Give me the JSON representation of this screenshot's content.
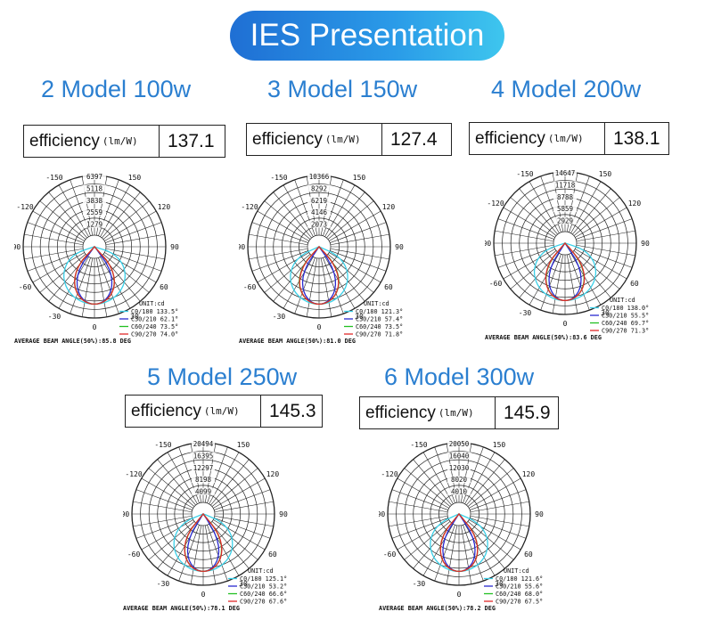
{
  "banner": {
    "title": "IES Presentation"
  },
  "efficiency_word": "efficiency",
  "efficiency_unit": "(lm/W)",
  "chart_data": [
    {
      "type": "polar",
      "model_title": "2 Model 100w",
      "efficiency": "137.1",
      "angle_labels": [
        "-150",
        "150",
        "-120",
        "120",
        "-90",
        "90",
        "-60",
        "60",
        "-30",
        "30",
        "0"
      ],
      "radial_ticks": [
        "6397",
        "5118",
        "3838",
        "2559",
        "1279"
      ],
      "unit_label": "UNIT:cd",
      "legend": [
        {
          "name": "C0/180",
          "value": "133.5°",
          "color": "#3ad0e8"
        },
        {
          "name": "C30/210",
          "value": "62.1°",
          "color": "#2a2ad0"
        },
        {
          "name": "C60/240",
          "value": "73.5°",
          "color": "#22c022"
        },
        {
          "name": "C90/270",
          "value": "74.0°",
          "color": "#e02a2a"
        }
      ],
      "beam_angle_label": "AVERAGE BEAM ANGLE(50%):85.8 DEG"
    },
    {
      "type": "polar",
      "model_title": "3 Model 150w",
      "efficiency": "127.4",
      "angle_labels": [
        "-150",
        "150",
        "-120",
        "120",
        "-90",
        "90",
        "-60",
        "60",
        "-30",
        "30",
        "0"
      ],
      "radial_ticks": [
        "10366",
        "8292",
        "6219",
        "4146",
        "2073"
      ],
      "unit_label": "UNIT:cd",
      "legend": [
        {
          "name": "C0/180",
          "value": "121.3°",
          "color": "#3ad0e8"
        },
        {
          "name": "C30/210",
          "value": "57.4°",
          "color": "#2a2ad0"
        },
        {
          "name": "C60/240",
          "value": "73.5°",
          "color": "#22c022"
        },
        {
          "name": "C90/270",
          "value": "71.8°",
          "color": "#e02a2a"
        }
      ],
      "beam_angle_label": "AVERAGE BEAM ANGLE(50%):81.0 DEG"
    },
    {
      "type": "polar",
      "model_title": "4 Model 200w",
      "efficiency": "138.1",
      "angle_labels": [
        "-150",
        "150",
        "-120",
        "120",
        "-90",
        "90",
        "-60",
        "60",
        "-30",
        "30",
        "0"
      ],
      "radial_ticks": [
        "14647",
        "11718",
        "8788",
        "5859",
        "2929"
      ],
      "unit_label": "UNIT:cd",
      "legend": [
        {
          "name": "C0/180",
          "value": "138.0°",
          "color": "#3ad0e8"
        },
        {
          "name": "C30/210",
          "value": "55.5°",
          "color": "#2a2ad0"
        },
        {
          "name": "C60/240",
          "value": "69.7°",
          "color": "#22c022"
        },
        {
          "name": "C90/270",
          "value": "71.3°",
          "color": "#e02a2a"
        }
      ],
      "beam_angle_label": "AVERAGE BEAM ANGLE(50%):83.6 DEG"
    },
    {
      "type": "polar",
      "model_title": "5 Model 250w",
      "efficiency": "145.3",
      "angle_labels": [
        "-150",
        "150",
        "-120",
        "120",
        "-90",
        "90",
        "-60",
        "60",
        "-30",
        "30",
        "0"
      ],
      "radial_ticks": [
        "20494",
        "16395",
        "12297",
        "8198",
        "4099"
      ],
      "unit_label": "UNIT:cd",
      "legend": [
        {
          "name": "C0/180",
          "value": "125.1°",
          "color": "#3ad0e8"
        },
        {
          "name": "C30/210",
          "value": "53.2°",
          "color": "#2a2ad0"
        },
        {
          "name": "C60/240",
          "value": "66.6°",
          "color": "#22c022"
        },
        {
          "name": "C90/270",
          "value": "67.6°",
          "color": "#e02a2a"
        }
      ],
      "beam_angle_label": "AVERAGE BEAM ANGLE(50%):78.1 DEG"
    },
    {
      "type": "polar",
      "model_title": "6 Model 300w",
      "efficiency": "145.9",
      "angle_labels": [
        "-150",
        "150",
        "-120",
        "120",
        "-90",
        "90",
        "-60",
        "60",
        "-30",
        "30",
        "0"
      ],
      "radial_ticks": [
        "20050",
        "16040",
        "12030",
        "8020",
        "4010"
      ],
      "unit_label": "UNIT:cd",
      "legend": [
        {
          "name": "C0/180",
          "value": "121.6°",
          "color": "#3ad0e8"
        },
        {
          "name": "C30/210",
          "value": "55.6°",
          "color": "#2a2ad0"
        },
        {
          "name": "C60/240",
          "value": "68.0°",
          "color": "#22c022"
        },
        {
          "name": "C90/270",
          "value": "67.5°",
          "color": "#e02a2a"
        }
      ],
      "beam_angle_label": "AVERAGE BEAM ANGLE(50%):78.2 DEG"
    }
  ]
}
